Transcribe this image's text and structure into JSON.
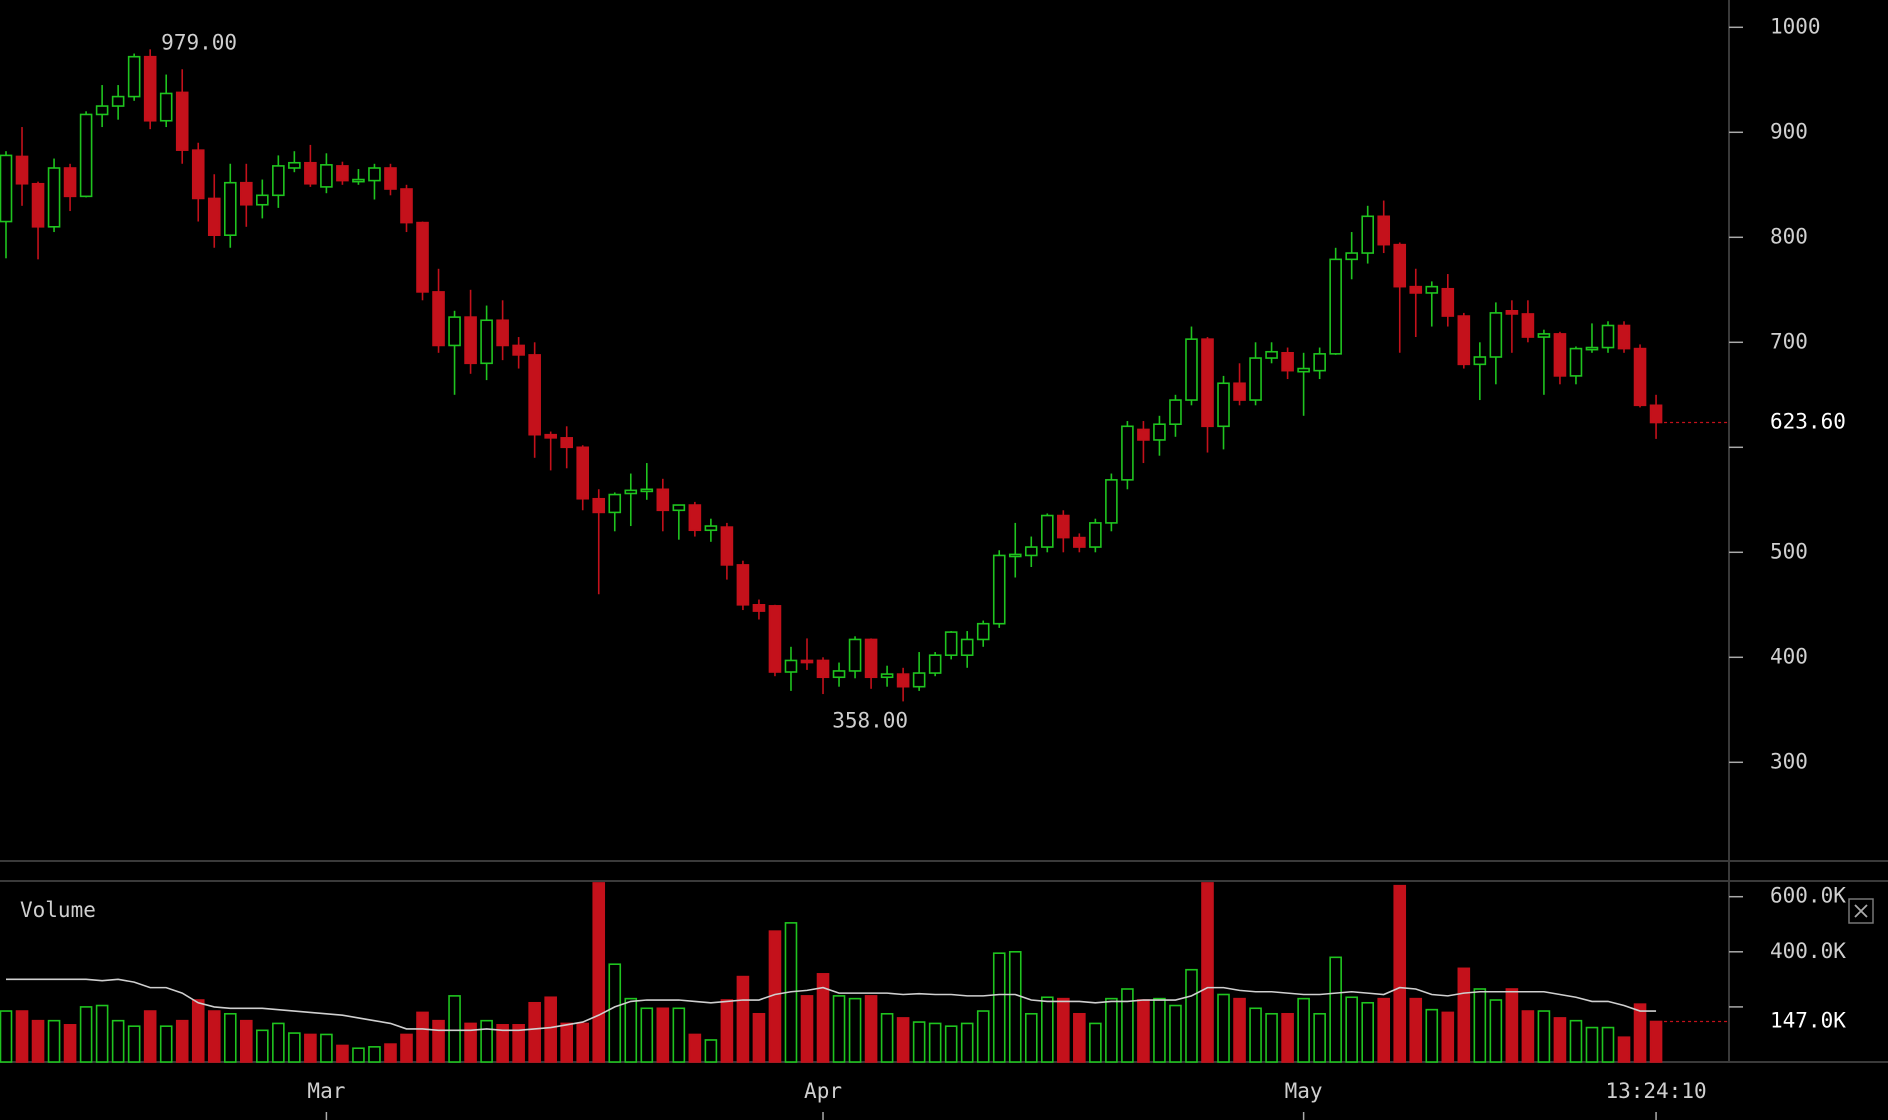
{
  "chart_data": [
    {
      "type": "candlestick",
      "up_color": "#1fc41f",
      "down_color": "#c4111b",
      "open": [
        815,
        877,
        851,
        810,
        866,
        839,
        917,
        925,
        934,
        972,
        911,
        938,
        883,
        837,
        802,
        852,
        831,
        840,
        866,
        871,
        848,
        868,
        853,
        854,
        866,
        846,
        814,
        748,
        697,
        724,
        680,
        721,
        697,
        688,
        612,
        609,
        600,
        551,
        538,
        556,
        558,
        560,
        540,
        545,
        521,
        524,
        488,
        450,
        449,
        386,
        397,
        397,
        381,
        387,
        417,
        381,
        384,
        372,
        385,
        402,
        402,
        417,
        432,
        496,
        497,
        505,
        535,
        514,
        505,
        528,
        569,
        617,
        607,
        622,
        645,
        703,
        620,
        661,
        645,
        685,
        690,
        672,
        673,
        689,
        779,
        785,
        820,
        793,
        753,
        747,
        751,
        725,
        679,
        686,
        730,
        727,
        705,
        708,
        668,
        693,
        695,
        716,
        694,
        640
      ],
      "high": [
        882,
        905,
        853,
        875,
        870,
        920,
        945,
        945,
        975,
        979,
        955,
        960,
        890,
        860,
        870,
        870,
        855,
        878,
        882,
        888,
        880,
        872,
        865,
        870,
        870,
        850,
        815,
        770,
        730,
        750,
        735,
        740,
        705,
        700,
        615,
        620,
        602,
        560,
        557,
        575,
        585,
        570,
        545,
        548,
        532,
        528,
        492,
        455,
        450,
        410,
        418,
        400,
        395,
        420,
        418,
        392,
        390,
        405,
        405,
        425,
        425,
        435,
        502,
        528,
        515,
        537,
        540,
        518,
        532,
        575,
        625,
        625,
        630,
        650,
        715,
        705,
        668,
        680,
        700,
        700,
        695,
        690,
        695,
        790,
        805,
        830,
        835,
        795,
        770,
        758,
        765,
        728,
        700,
        738,
        740,
        740,
        712,
        710,
        696,
        718,
        720,
        720,
        698,
        650
      ],
      "low": [
        780,
        830,
        779,
        805,
        825,
        838,
        905,
        912,
        930,
        903,
        905,
        870,
        815,
        790,
        790,
        810,
        818,
        828,
        862,
        848,
        842,
        850,
        850,
        836,
        840,
        805,
        740,
        690,
        650,
        670,
        664,
        683,
        675,
        590,
        578,
        580,
        540,
        460,
        520,
        525,
        550,
        520,
        512,
        515,
        510,
        474,
        445,
        436,
        382,
        368,
        388,
        365,
        372,
        380,
        370,
        372,
        358,
        368,
        382,
        398,
        390,
        410,
        428,
        476,
        486,
        500,
        500,
        500,
        500,
        520,
        560,
        585,
        592,
        610,
        640,
        595,
        598,
        640,
        640,
        680,
        665,
        630,
        665,
        688,
        760,
        775,
        785,
        690,
        705,
        715,
        715,
        675,
        645,
        660,
        690,
        700,
        650,
        660,
        660,
        690,
        690,
        690,
        638,
        608
      ],
      "close": [
        878,
        851,
        810,
        866,
        839,
        917,
        925,
        934,
        972,
        911,
        937,
        883,
        837,
        802,
        852,
        831,
        840,
        868,
        871,
        851,
        869,
        854,
        855,
        866,
        846,
        814,
        748,
        697,
        724,
        680,
        721,
        697,
        688,
        612,
        609,
        600,
        551,
        538,
        555,
        559,
        560,
        540,
        545,
        521,
        525,
        488,
        450,
        444,
        386,
        397,
        395,
        381,
        387,
        417,
        381,
        384,
        372,
        385,
        402,
        424,
        417,
        432,
        497,
        498,
        505,
        535,
        514,
        505,
        528,
        569,
        620,
        607,
        622,
        645,
        703,
        620,
        661,
        645,
        685,
        691,
        673,
        675,
        689,
        779,
        785,
        820,
        793,
        753,
        747,
        753,
        725,
        679,
        686,
        728,
        727,
        705,
        708,
        668,
        694,
        695,
        716,
        694,
        640,
        623.6
      ],
      "ylim": [
        206,
        1026
      ],
      "yticks": [
        1000,
        900,
        800,
        700,
        {
          "value": 600,
          "label": null
        },
        500,
        400,
        300
      ],
      "high_label": {
        "value": 979,
        "label": "979.00"
      },
      "low_label": {
        "value": 358,
        "label": "358.00"
      },
      "last_value": {
        "value": 623.6,
        "label": "623.60"
      }
    },
    {
      "type": "bar",
      "title": "Volume",
      "categories": [
        null,
        null,
        null,
        null,
        null,
        null,
        null,
        null,
        null,
        null,
        null,
        null,
        null,
        null,
        null,
        null,
        null,
        null,
        null,
        null,
        "Mar",
        null,
        null,
        null,
        null,
        null,
        null,
        null,
        null,
        null,
        null,
        null,
        null,
        null,
        null,
        null,
        null,
        null,
        null,
        null,
        null,
        null,
        null,
        null,
        null,
        null,
        null,
        null,
        null,
        null,
        null,
        "Apr",
        null,
        null,
        null,
        null,
        null,
        null,
        null,
        null,
        null,
        null,
        null,
        null,
        null,
        null,
        null,
        null,
        null,
        null,
        null,
        null,
        null,
        null,
        null,
        null,
        null,
        null,
        null,
        null,
        null,
        "May",
        null,
        null,
        null,
        null,
        null,
        null,
        null,
        null,
        null,
        null,
        null,
        null,
        null,
        null,
        null,
        null,
        null,
        null,
        null,
        null,
        null,
        "13:24:10"
      ],
      "values": [
        185000,
        185000,
        150000,
        150000,
        135000,
        200000,
        205000,
        150000,
        130000,
        185000,
        130000,
        150000,
        225000,
        185000,
        175000,
        150000,
        115000,
        140000,
        105000,
        100000,
        100000,
        60000,
        50000,
        55000,
        65000,
        100000,
        180000,
        150000,
        240000,
        140000,
        150000,
        135000,
        135000,
        215000,
        235000,
        140000,
        140000,
        650000,
        355000,
        230000,
        195000,
        195000,
        195000,
        100000,
        80000,
        225000,
        310000,
        175000,
        475000,
        505000,
        240000,
        320000,
        240000,
        230000,
        240000,
        175000,
        160000,
        145000,
        140000,
        130000,
        140000,
        185000,
        395000,
        400000,
        175000,
        235000,
        230000,
        175000,
        140000,
        230000,
        265000,
        225000,
        230000,
        205000,
        335000,
        650000,
        245000,
        230000,
        195000,
        175000,
        175000,
        230000,
        175000,
        380000,
        235000,
        215000,
        230000,
        640000,
        230000,
        190000,
        180000,
        340000,
        265000,
        225000,
        265000,
        185000,
        185000,
        160000,
        150000,
        125000,
        125000,
        90000,
        210000,
        147000
      ],
      "up_color": "#1fc41f",
      "down_color": "#c4111b",
      "line": {
        "color": "#cfcfcf",
        "values": [
          300000,
          300000,
          300000,
          300000,
          300000,
          300000,
          295000,
          300000,
          290000,
          270000,
          270000,
          250000,
          215000,
          200000,
          195000,
          195000,
          195000,
          190000,
          185000,
          180000,
          175000,
          170000,
          160000,
          150000,
          140000,
          120000,
          120000,
          115000,
          115000,
          115000,
          120000,
          115000,
          115000,
          120000,
          125000,
          135000,
          145000,
          170000,
          200000,
          220000,
          225000,
          225000,
          225000,
          220000,
          215000,
          220000,
          225000,
          225000,
          245000,
          255000,
          260000,
          270000,
          250000,
          250000,
          250000,
          250000,
          245000,
          248000,
          245000,
          245000,
          240000,
          240000,
          245000,
          245000,
          225000,
          220000,
          220000,
          220000,
          215000,
          220000,
          220000,
          225000,
          225000,
          225000,
          240000,
          270000,
          270000,
          260000,
          255000,
          255000,
          250000,
          245000,
          245000,
          250000,
          255000,
          250000,
          245000,
          270000,
          265000,
          245000,
          240000,
          250000,
          255000,
          255000,
          255000,
          255000,
          255000,
          245000,
          235000,
          220000,
          220000,
          205000,
          185000,
          185000
        ]
      },
      "ylim": [
        0,
        657000
      ],
      "yticks": [
        {
          "value": 600000,
          "label": "600.0K"
        },
        {
          "value": 400000,
          "label": "400.0K"
        },
        {
          "value": 200000,
          "label": null
        }
      ],
      "last_value": {
        "value": 147000,
        "label": "147.0K"
      }
    }
  ]
}
